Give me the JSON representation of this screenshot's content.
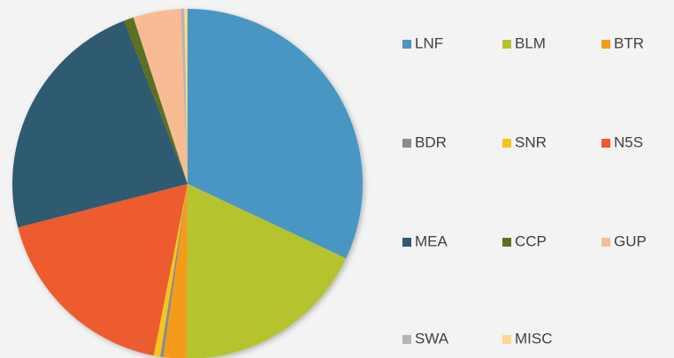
{
  "chart_data": {
    "type": "pie",
    "categories": [
      "LNF",
      "BLM",
      "BTR",
      "BDR",
      "SNR",
      "N5S",
      "MEA",
      "CCP",
      "GUP",
      "SWA",
      "MISC"
    ],
    "values": [
      32.0,
      18.1,
      2.1,
      0.3,
      0.6,
      17.9,
      23.1,
      0.9,
      4.4,
      0.3,
      0.3
    ],
    "colors": [
      "#4a96c4",
      "#b5c42e",
      "#f59b1a",
      "#8c8c8c",
      "#f5c51a",
      "#ec5b2e",
      "#2e5a72",
      "#5b7020",
      "#f8bc94",
      "#b4b4b4",
      "#fcd88e"
    ],
    "legend": "right"
  }
}
